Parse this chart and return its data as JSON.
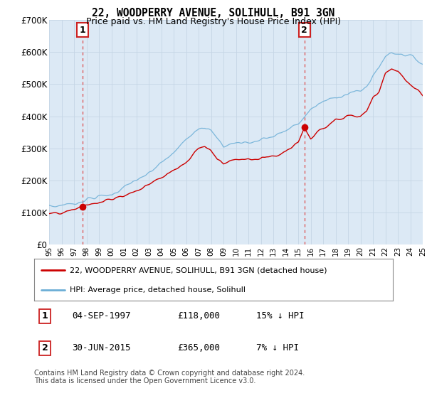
{
  "title": "22, WOODPERRY AVENUE, SOLIHULL, B91 3GN",
  "subtitle": "Price paid vs. HM Land Registry's House Price Index (HPI)",
  "background_color": "#dce9f5",
  "plot_bg_color": "#dce9f5",
  "grid_color": "#c8d8e8",
  "legend_label_red": "22, WOODPERRY AVENUE, SOLIHULL, B91 3GN (detached house)",
  "legend_label_blue": "HPI: Average price, detached house, Solihull",
  "annotation1_label": "1",
  "annotation1_date": "04-SEP-1997",
  "annotation1_price": "£118,000",
  "annotation1_hpi": "15% ↓ HPI",
  "annotation2_label": "2",
  "annotation2_date": "30-JUN-2015",
  "annotation2_price": "£365,000",
  "annotation2_hpi": "7% ↓ HPI",
  "footer": "Contains HM Land Registry data © Crown copyright and database right 2024.\nThis data is licensed under the Open Government Licence v3.0.",
  "ylim": [
    0,
    700000
  ],
  "yticks": [
    0,
    100000,
    200000,
    300000,
    400000,
    500000,
    600000,
    700000
  ],
  "ytick_labels": [
    "£0",
    "£100K",
    "£200K",
    "£300K",
    "£400K",
    "£500K",
    "£600K",
    "£700K"
  ],
  "sale1_year": 1997.67,
  "sale1_price": 118000,
  "sale2_year": 2015.5,
  "sale2_price": 365000,
  "xmin": 1995,
  "xmax": 2025,
  "red_line_color": "#cc0000",
  "blue_line_color": "#6baed6",
  "vline_color": "#dd4444",
  "box_edge_color": "#cc2222"
}
